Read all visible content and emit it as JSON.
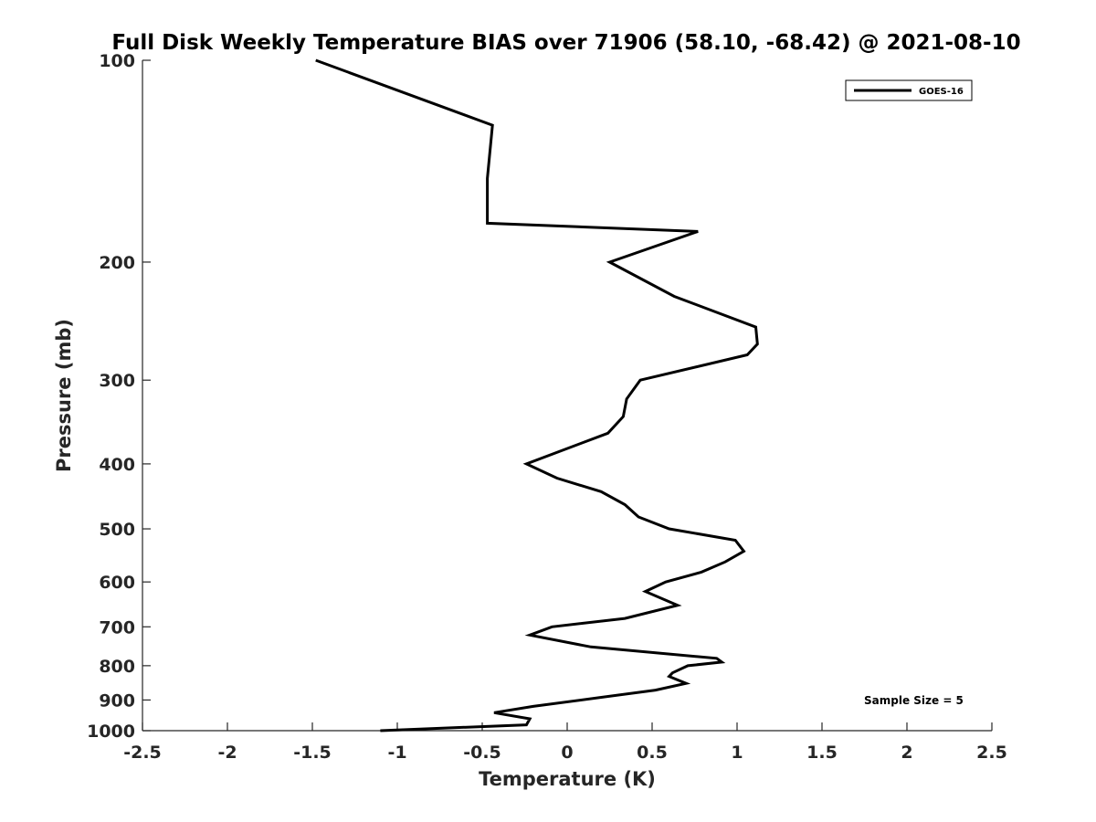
{
  "chart_data": {
    "type": "line",
    "title": "Full Disk Weekly Temperature BIAS over 71906 (58.10, -68.42) @ 2021-08-10",
    "xlabel": "Temperature (K)",
    "ylabel": "Pressure (mb)",
    "xlim": [
      -2.5,
      2.5
    ],
    "ylim": [
      100,
      1000
    ],
    "y_scale": "log",
    "y_reversed": true,
    "x_ticks": [
      "-2.5",
      "-2",
      "-1.5",
      "-1",
      "-0.5",
      "0",
      "0.5",
      "1",
      "1.5",
      "2",
      "2.5"
    ],
    "y_ticks": [
      "100",
      "200",
      "300",
      "400",
      "500",
      "600",
      "700",
      "800",
      "900",
      "1000"
    ],
    "grid": false,
    "legend_position": "top-right",
    "annotation": "Sample Size = 5",
    "series": [
      {
        "name": "GOES-16",
        "color": "#000000",
        "points": [
          {
            "temperature": -1.48,
            "pressure": 100
          },
          {
            "temperature": -0.44,
            "pressure": 125
          },
          {
            "temperature": -0.47,
            "pressure": 150
          },
          {
            "temperature": -0.47,
            "pressure": 175
          },
          {
            "temperature": 0.77,
            "pressure": 180
          },
          {
            "temperature": 0.25,
            "pressure": 200
          },
          {
            "temperature": 0.63,
            "pressure": 225
          },
          {
            "temperature": 1.11,
            "pressure": 250
          },
          {
            "temperature": 1.12,
            "pressure": 265
          },
          {
            "temperature": 1.06,
            "pressure": 275
          },
          {
            "temperature": 0.43,
            "pressure": 300
          },
          {
            "temperature": 0.35,
            "pressure": 320
          },
          {
            "temperature": 0.33,
            "pressure": 340
          },
          {
            "temperature": 0.24,
            "pressure": 360
          },
          {
            "temperature": -0.24,
            "pressure": 400
          },
          {
            "temperature": -0.06,
            "pressure": 420
          },
          {
            "temperature": 0.2,
            "pressure": 440
          },
          {
            "temperature": 0.34,
            "pressure": 460
          },
          {
            "temperature": 0.42,
            "pressure": 480
          },
          {
            "temperature": 0.6,
            "pressure": 500
          },
          {
            "temperature": 0.99,
            "pressure": 520
          },
          {
            "temperature": 1.04,
            "pressure": 540
          },
          {
            "temperature": 0.93,
            "pressure": 560
          },
          {
            "temperature": 0.79,
            "pressure": 580
          },
          {
            "temperature": 0.58,
            "pressure": 600
          },
          {
            "temperature": 0.46,
            "pressure": 620
          },
          {
            "temperature": 0.65,
            "pressure": 650
          },
          {
            "temperature": 0.34,
            "pressure": 680
          },
          {
            "temperature": -0.09,
            "pressure": 700
          },
          {
            "temperature": -0.22,
            "pressure": 720
          },
          {
            "temperature": 0.14,
            "pressure": 750
          },
          {
            "temperature": 0.88,
            "pressure": 780
          },
          {
            "temperature": 0.91,
            "pressure": 790
          },
          {
            "temperature": 0.71,
            "pressure": 800
          },
          {
            "temperature": 0.62,
            "pressure": 820
          },
          {
            "temperature": 0.6,
            "pressure": 830
          },
          {
            "temperature": 0.7,
            "pressure": 850
          },
          {
            "temperature": 0.52,
            "pressure": 870
          },
          {
            "temperature": -0.2,
            "pressure": 920
          },
          {
            "temperature": -0.43,
            "pressure": 940
          },
          {
            "temperature": -0.22,
            "pressure": 960
          },
          {
            "temperature": -0.24,
            "pressure": 980
          },
          {
            "temperature": -1.1,
            "pressure": 1000
          }
        ]
      }
    ]
  }
}
